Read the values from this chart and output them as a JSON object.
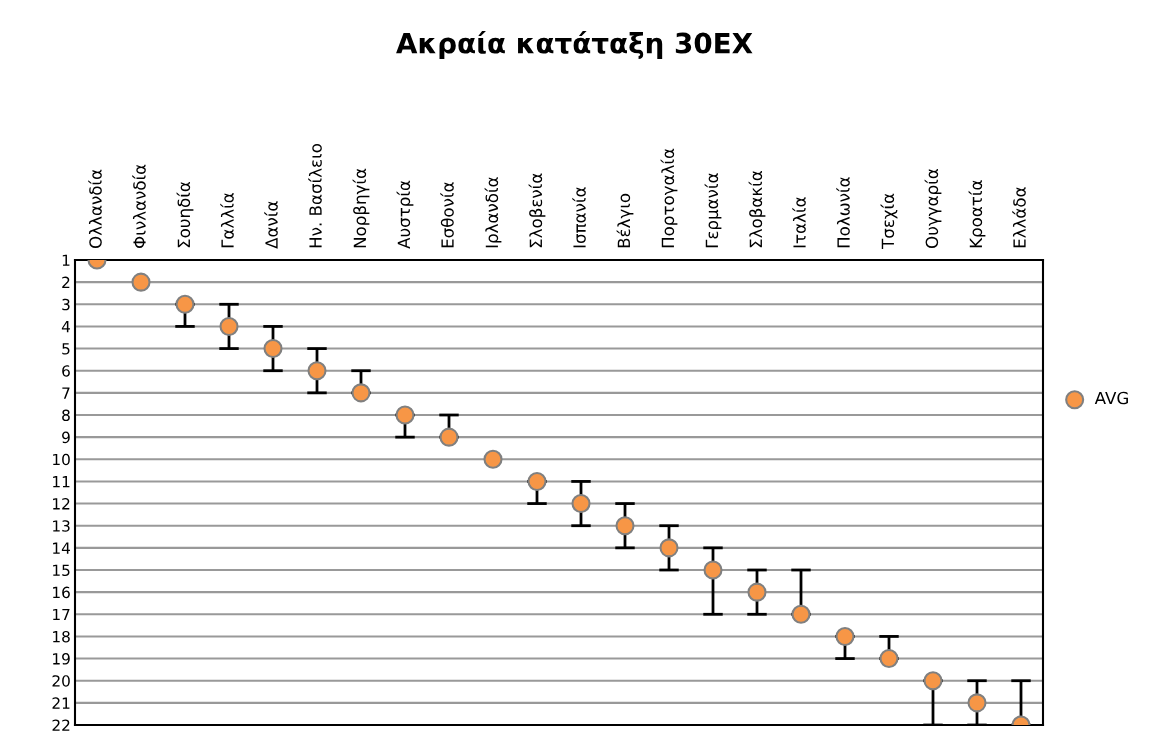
{
  "chart_data": {
    "type": "scatter",
    "title": "Ακραία κατάταξη 30ΕΧ",
    "categories": [
      "Ολλανδία",
      "Φινλανδία",
      "Σουηδία",
      "Γαλλία",
      "Δανία",
      "Ην. Βασίλειο",
      "Νορβηγία",
      "Αυστρία",
      "Εσθονία",
      "Ιρλανδία",
      "Σλοβενία",
      "Ισπανία",
      "Βέλγιο",
      "Πορτογαλία",
      "Γερμανία",
      "Σλοβακία",
      "Ιταλία",
      "Πολωνία",
      "Τσεχία",
      "Ουγγαρία",
      "Κροατία",
      "Ελλάδα"
    ],
    "series": [
      {
        "name": "AVG",
        "color": "#f79646",
        "values": [
          1,
          2,
          3,
          4,
          5,
          6,
          7,
          8,
          9,
          10,
          11,
          12,
          13,
          14,
          15,
          16,
          17,
          18,
          19,
          20,
          21,
          22
        ],
        "errors": [
          null,
          null,
          [
            3,
            4
          ],
          [
            3,
            5
          ],
          [
            4,
            6
          ],
          [
            5,
            7
          ],
          [
            6,
            7
          ],
          [
            8,
            9
          ],
          [
            8,
            9
          ],
          null,
          [
            11,
            12
          ],
          [
            11,
            13
          ],
          [
            12,
            14
          ],
          [
            13,
            15
          ],
          [
            14,
            17
          ],
          [
            15,
            17
          ],
          [
            15,
            17
          ],
          [
            18,
            19
          ],
          [
            18,
            19
          ],
          [
            20,
            22
          ],
          [
            20,
            22
          ],
          [
            20,
            22
          ]
        ]
      }
    ],
    "ylim": [
      22,
      1
    ],
    "yticks": [
      1,
      2,
      3,
      4,
      5,
      6,
      7,
      8,
      9,
      10,
      11,
      12,
      13,
      14,
      15,
      16,
      17,
      18,
      19,
      20,
      21,
      22
    ],
    "grid": "y",
    "legend": "right",
    "marker": "circle"
  }
}
